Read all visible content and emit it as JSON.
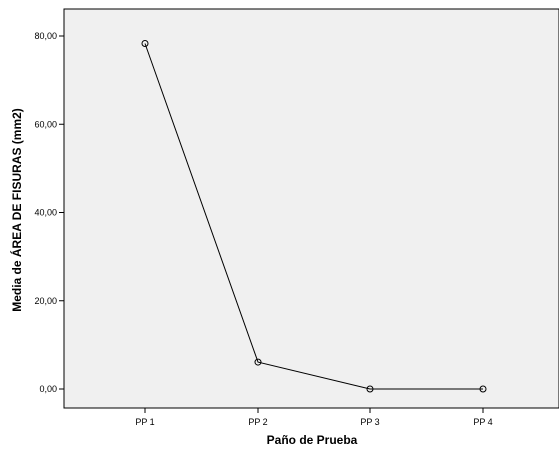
{
  "chart_data": {
    "type": "line",
    "title": "",
    "xlabel": "Paño de Prueba",
    "ylabel": "Media de ÁREA DE FISURAS (mm2)",
    "categories": [
      "PP 1",
      "PP 2",
      "PP 3",
      "PP 4"
    ],
    "series": [
      {
        "values": [
          78.3,
          6.1,
          0.0,
          0.0
        ]
      }
    ],
    "ylim": [
      0,
      80
    ],
    "yticks": [
      0,
      20,
      40,
      60,
      80
    ],
    "ytick_labels": [
      "0,00",
      "20,00",
      "40,00",
      "60,00",
      "80,00"
    ],
    "grid": false,
    "marker": "open-circle",
    "colors": {
      "plot_background": "#f0f0f0",
      "line": "#000000"
    }
  }
}
